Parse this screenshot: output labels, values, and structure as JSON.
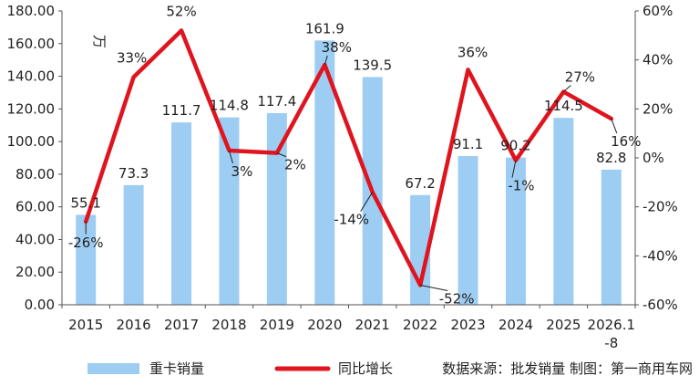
{
  "chart_data": {
    "type": "bar",
    "categories": [
      "2015",
      "2016",
      "2017",
      "2018",
      "2019",
      "2020",
      "2021",
      "2022",
      "2023",
      "2024",
      "2025",
      "2026.1-8"
    ],
    "category_lines": [
      [
        "2015"
      ],
      [
        "2016"
      ],
      [
        "2017"
      ],
      [
        "2018"
      ],
      [
        "2019"
      ],
      [
        "2020"
      ],
      [
        "2021"
      ],
      [
        "2022"
      ],
      [
        "2023"
      ],
      [
        "2024"
      ],
      [
        "2025"
      ],
      [
        "2026.1",
        "-8"
      ]
    ],
    "series": [
      {
        "name": "重卡销量",
        "type": "bar",
        "axis": "left",
        "values": [
          55.1,
          73.3,
          111.7,
          114.8,
          117.4,
          161.9,
          139.5,
          67.2,
          91.1,
          90.2,
          114.5,
          82.8
        ],
        "labels": [
          "55.1",
          "73.3",
          "111.7",
          "114.8",
          "117.4",
          "161.9",
          "139.5",
          "67.2",
          "91.1",
          "90.2",
          "114.5",
          "82.8"
        ],
        "color": "#9DCDF2"
      },
      {
        "name": "同比增长",
        "type": "line",
        "axis": "right",
        "values": [
          -26,
          33,
          52,
          3,
          2,
          38,
          -14,
          -52,
          36,
          -1,
          27,
          16
        ],
        "labels": [
          "-26%",
          "33%",
          "52%",
          "3%",
          "2%",
          "38%",
          "-14%",
          "-52%",
          "36%",
          "-1%",
          "27%",
          "16%"
        ],
        "color": "#E0141E"
      }
    ],
    "left_axis": {
      "unit_label": "万",
      "ylim": [
        0,
        180
      ],
      "ticks": [
        "0.00",
        "20.00",
        "40.00",
        "60.00",
        "80.00",
        "100.00",
        "120.00",
        "140.00",
        "160.00",
        "180.00"
      ]
    },
    "right_axis": {
      "ylim": [
        -60,
        60
      ],
      "ticks": [
        "-60%",
        "-40%",
        "-20%",
        "0%",
        "20%",
        "40%",
        "60%"
      ]
    },
    "grid": false,
    "legend_position": "bottom",
    "source_note": "数据来源：批发销量  制图：第一商用车网"
  }
}
